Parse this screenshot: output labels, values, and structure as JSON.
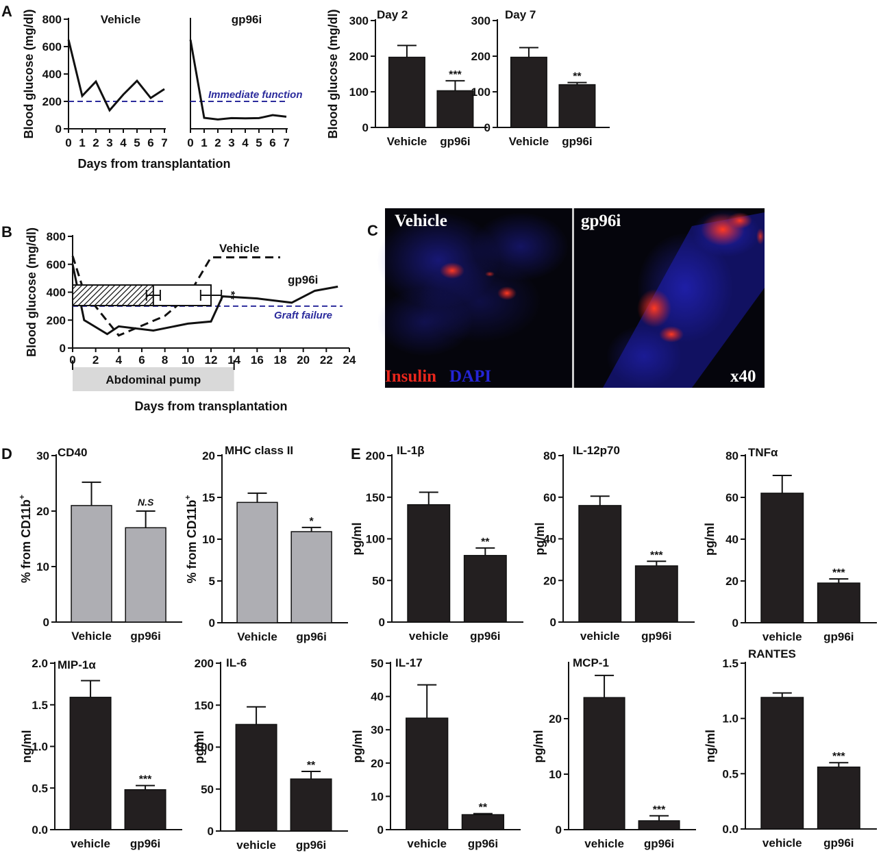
{
  "panel_letters": {
    "A": "A",
    "B": "B",
    "C": "C",
    "D": "D",
    "E": "E"
  },
  "chart_data": [
    {
      "id": "A-vehicle",
      "type": "line",
      "title": "Vehicle",
      "ylabel": "Blood glucose (mg/dl)",
      "xlabel": "Days from transplantation",
      "ylim": [
        0,
        800
      ],
      "yticks": [
        0,
        200,
        400,
        600,
        800
      ],
      "x": [
        0,
        1,
        2,
        3,
        4,
        5,
        6,
        7
      ],
      "xticks": [
        0,
        1,
        2,
        3,
        4,
        5,
        6,
        7
      ],
      "series": [
        {
          "values": [
            650,
            240,
            345,
            135,
            250,
            350,
            225,
            290
          ]
        }
      ],
      "threshold": {
        "value": 200,
        "color": "#2b2b9c"
      }
    },
    {
      "id": "A-gp96i",
      "type": "line",
      "title": "gp96i",
      "ylim": [
        0,
        800
      ],
      "x": [
        0,
        1,
        2,
        3,
        4,
        5,
        6,
        7
      ],
      "xticks": [
        0,
        1,
        2,
        3,
        4,
        5,
        6,
        7
      ],
      "series": [
        {
          "values": [
            650,
            80,
            68,
            78,
            76,
            78,
            100,
            88
          ]
        }
      ],
      "threshold": {
        "value": 200,
        "color": "#2b2b9c",
        "label": "Immediate function"
      }
    },
    {
      "id": "A-day2",
      "type": "bar",
      "title": "Day 2",
      "ylabel": "Blood glucose (mg/dl)",
      "ylim": [
        0,
        300
      ],
      "yticks": [
        0,
        100,
        200,
        300
      ],
      "categories": [
        "Vehicle",
        "gp96i"
      ],
      "values": [
        197,
        103
      ],
      "errors": [
        33,
        28
      ],
      "significance": [
        "",
        "***"
      ],
      "bar_color": "#231f20"
    },
    {
      "id": "A-day7",
      "type": "bar",
      "title": "Day 7",
      "ylim": [
        0,
        300
      ],
      "yticks": [
        0,
        100,
        200,
        300
      ],
      "categories": [
        "Vehicle",
        "gp96i"
      ],
      "values": [
        197,
        120
      ],
      "errors": [
        27,
        6
      ],
      "significance": [
        "",
        "**"
      ],
      "bar_color": "#231f20"
    },
    {
      "id": "B",
      "type": "line",
      "ylabel": "Blood glucose (mg/dl)",
      "xlabel": "Days from transplantation",
      "ylim": [
        0,
        800
      ],
      "yticks": [
        0,
        200,
        400,
        600,
        800
      ],
      "xlim": [
        0,
        24
      ],
      "xticks": [
        0,
        2,
        4,
        6,
        8,
        10,
        12,
        14,
        16,
        18,
        20,
        22,
        24
      ],
      "series": [
        {
          "name": "Vehicle",
          "style": "dashed",
          "x": [
            0,
            1,
            4,
            6,
            8,
            10,
            12,
            14,
            16,
            18
          ],
          "y": [
            660,
            400,
            90,
            160,
            230,
            370,
            650,
            650,
            650,
            650
          ]
        },
        {
          "name": "gp96i",
          "style": "solid",
          "x": [
            0,
            1,
            3,
            4,
            7,
            10,
            12,
            13,
            16,
            19,
            21,
            23
          ],
          "y": [
            600,
            200,
            100,
            155,
            125,
            175,
            190,
            370,
            355,
            325,
            410,
            440
          ]
        }
      ],
      "survival_bars": {
        "vehicle_mean": 7,
        "vehicle_err": 0.6,
        "gp96i_mean": 12,
        "gp96i_err": 0.9,
        "significance": "**"
      },
      "threshold": {
        "value": 300,
        "color": "#2b2b9c",
        "label": "Graft failure"
      },
      "pump": {
        "label": "Abdominal pump",
        "range": [
          0,
          14
        ]
      }
    },
    {
      "id": "D-cd40",
      "type": "bar",
      "title": "CD40",
      "ylabel": "% from CD11b+",
      "ylim": [
        0,
        30
      ],
      "yticks": [
        0,
        10,
        20,
        30
      ],
      "categories": [
        "Vehicle",
        "gp96i"
      ],
      "values": [
        21,
        17
      ],
      "errors": [
        4.2,
        3
      ],
      "significance": [
        "",
        "N.S"
      ],
      "bar_color": "#aeaeb3"
    },
    {
      "id": "D-mhc",
      "type": "bar",
      "title": "MHC class II",
      "ylabel": "% from CD11b+",
      "ylim": [
        0,
        20
      ],
      "yticks": [
        0,
        5,
        10,
        15,
        20
      ],
      "categories": [
        "Vehicle",
        "gp96i"
      ],
      "values": [
        14.4,
        10.9
      ],
      "errors": [
        1.1,
        0.5
      ],
      "significance": [
        "",
        "*"
      ],
      "bar_color": "#aeaeb3"
    },
    {
      "id": "E-il1b",
      "type": "bar",
      "title": "IL-1β",
      "ylabel": "pg/ml",
      "ylim": [
        0,
        200
      ],
      "yticks": [
        0,
        50,
        100,
        150,
        200
      ],
      "categories": [
        "vehicle",
        "gp96i"
      ],
      "values": [
        141,
        80
      ],
      "errors": [
        15,
        9
      ],
      "significance": [
        "",
        "**"
      ],
      "bar_color": "#231f20"
    },
    {
      "id": "E-il12",
      "type": "bar",
      "title": "IL-12p70",
      "ylabel": "pg/ml",
      "ylim": [
        0,
        80
      ],
      "yticks": [
        0,
        20,
        40,
        60,
        80
      ],
      "categories": [
        "vehicle",
        "gp96i"
      ],
      "values": [
        56,
        27
      ],
      "errors": [
        4.5,
        2.2
      ],
      "significance": [
        "",
        "***"
      ],
      "bar_color": "#231f20"
    },
    {
      "id": "E-tnfa",
      "type": "bar",
      "title": "TNFα",
      "ylabel": "pg/ml",
      "ylim": [
        0,
        80
      ],
      "yticks": [
        0,
        20,
        40,
        60,
        80
      ],
      "categories": [
        "vehicle",
        "gp96i"
      ],
      "values": [
        62,
        19
      ],
      "errors": [
        8.5,
        2
      ],
      "significance": [
        "",
        "***"
      ],
      "bar_color": "#231f20"
    },
    {
      "id": "E-mip1a",
      "type": "bar",
      "title": "MIP-1α",
      "ylabel": "ng/ml",
      "ylim": [
        0,
        2.0
      ],
      "yticks": [
        "0.0",
        "0.5",
        "1.0",
        "1.5",
        "2.0"
      ],
      "categories": [
        "vehicle",
        "gp96i"
      ],
      "values": [
        1.59,
        0.48
      ],
      "errors": [
        0.2,
        0.05
      ],
      "significance": [
        "",
        "***"
      ],
      "bar_color": "#231f20"
    },
    {
      "id": "E-il6",
      "type": "bar",
      "title": "IL-6",
      "ylabel": "pg/ml",
      "ylim": [
        0,
        200
      ],
      "yticks": [
        0,
        50,
        100,
        150,
        200
      ],
      "categories": [
        "vehicle",
        "gp96i"
      ],
      "values": [
        127,
        62
      ],
      "errors": [
        21,
        9
      ],
      "significance": [
        "",
        "**"
      ],
      "bar_color": "#231f20"
    },
    {
      "id": "E-il17",
      "type": "bar",
      "title": "IL-17",
      "ylabel": "pg/ml",
      "ylim": [
        0,
        50
      ],
      "yticks": [
        0,
        10,
        20,
        30,
        40,
        50
      ],
      "categories": [
        "vehicle",
        "gp96i"
      ],
      "values": [
        33.5,
        4.5
      ],
      "errors": [
        10,
        0.3
      ],
      "significance": [
        "",
        "**"
      ],
      "bar_color": "#231f20"
    },
    {
      "id": "E-mcp1",
      "type": "bar",
      "title": "MCP-1",
      "ylabel": "pg/ml",
      "ylim": [
        0,
        30
      ],
      "yticks": [
        0,
        10,
        20
      ],
      "categories": [
        "vehicle",
        "gp96i"
      ],
      "values": [
        23.8,
        1.6
      ],
      "errors": [
        4,
        0.9
      ],
      "significance": [
        "",
        "***"
      ],
      "bar_color": "#231f20"
    },
    {
      "id": "E-rantes",
      "type": "bar",
      "title": "RANTES",
      "ylabel": "ng/ml",
      "ylim": [
        0,
        1.5
      ],
      "yticks": [
        "0.0",
        "0.5",
        "1.0",
        "1.5"
      ],
      "categories": [
        "vehicle",
        "gp96i"
      ],
      "values": [
        1.19,
        0.56
      ],
      "errors": [
        0.04,
        0.04
      ],
      "significance": [
        "",
        "***"
      ],
      "bar_color": "#231f20"
    }
  ],
  "micrographs": {
    "left_label": "Vehicle",
    "right_label": "gp96i",
    "stain_insulin": "Insulin",
    "stain_dapi": "DAPI",
    "magnification": "x40",
    "insulin_color": "#e8261c",
    "dapi_color": "#2424d6"
  }
}
